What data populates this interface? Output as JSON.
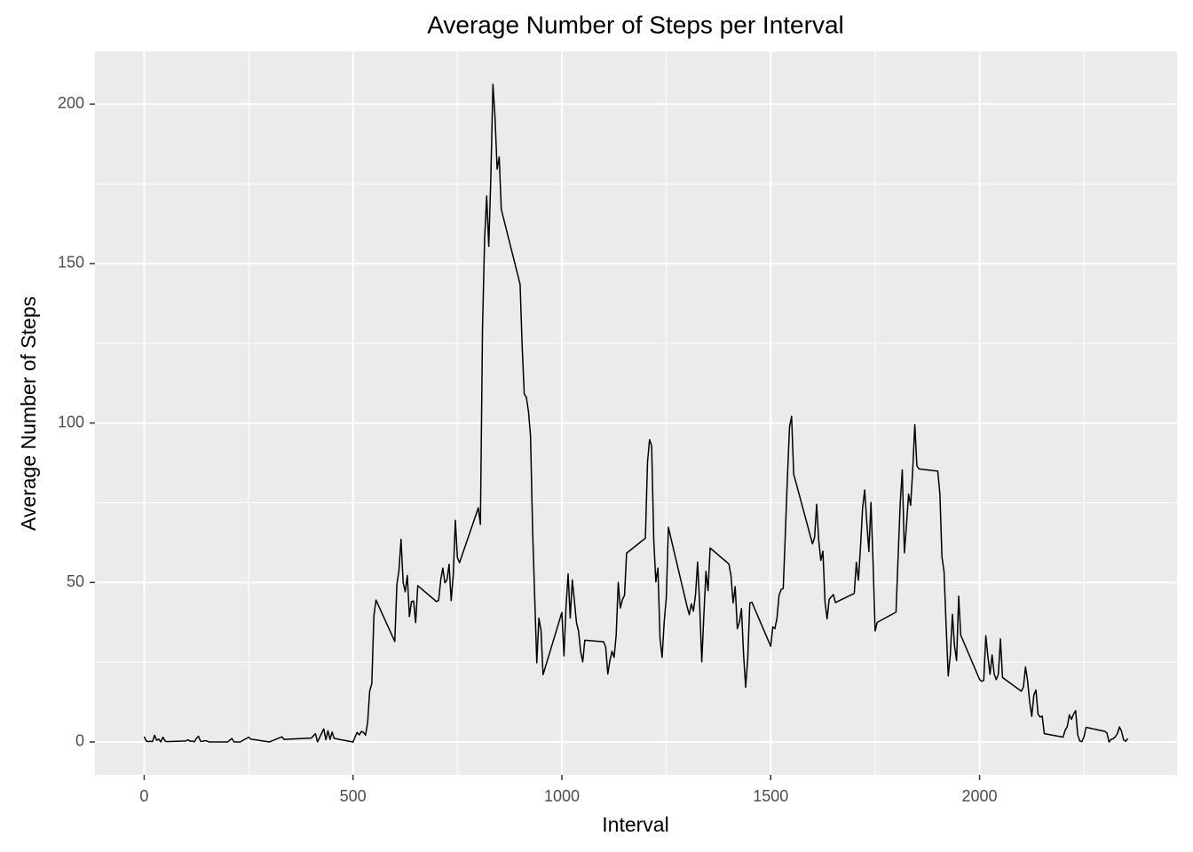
{
  "chart_data": {
    "type": "line",
    "title": "Average Number of Steps per Interval",
    "x_label": "Interval",
    "y_label": "Average Number of Steps",
    "xlim": [
      -117.75,
      2472.75
    ],
    "ylim": [
      -10.3,
      216.5
    ],
    "xticks": [
      0,
      500,
      1000,
      1500,
      2000
    ],
    "yticks": [
      0,
      50,
      100,
      150,
      200
    ],
    "x_minor_ticks": [
      250,
      750,
      1250,
      1750,
      2250
    ],
    "y_minor_ticks": [
      25,
      75,
      125,
      175
    ],
    "grid": true,
    "background": "#ebebeb",
    "grid_color": "#ffffff",
    "series": [
      {
        "name": "steps",
        "color": "#000000",
        "x": [
          0,
          5,
          10,
          15,
          20,
          25,
          30,
          35,
          40,
          45,
          50,
          55,
          100,
          105,
          110,
          115,
          120,
          125,
          130,
          135,
          140,
          145,
          150,
          155,
          200,
          210,
          215,
          230,
          250,
          255,
          300,
          330,
          335,
          400,
          410,
          415,
          430,
          435,
          440,
          445,
          450,
          455,
          500,
          505,
          510,
          515,
          520,
          525,
          530,
          535,
          540,
          545,
          550,
          555,
          600,
          605,
          610,
          615,
          620,
          625,
          630,
          635,
          640,
          645,
          650,
          655,
          700,
          705,
          710,
          715,
          720,
          725,
          730,
          735,
          740,
          745,
          750,
          755,
          800,
          805,
          810,
          815,
          820,
          825,
          830,
          835,
          840,
          845,
          850,
          855,
          900,
          905,
          910,
          915,
          920,
          925,
          930,
          935,
          940,
          945,
          950,
          955,
          1000,
          1005,
          1010,
          1015,
          1020,
          1025,
          1030,
          1035,
          1040,
          1045,
          1050,
          1055,
          1100,
          1105,
          1110,
          1115,
          1120,
          1125,
          1130,
          1135,
          1140,
          1145,
          1150,
          1155,
          1200,
          1205,
          1210,
          1215,
          1220,
          1225,
          1230,
          1235,
          1240,
          1245,
          1250,
          1255,
          1300,
          1305,
          1310,
          1315,
          1320,
          1325,
          1330,
          1335,
          1340,
          1345,
          1350,
          1355,
          1400,
          1405,
          1410,
          1415,
          1420,
          1425,
          1430,
          1435,
          1440,
          1445,
          1450,
          1455,
          1500,
          1505,
          1510,
          1515,
          1520,
          1525,
          1530,
          1535,
          1540,
          1545,
          1550,
          1555,
          1600,
          1605,
          1610,
          1615,
          1620,
          1625,
          1630,
          1635,
          1640,
          1645,
          1650,
          1655,
          1700,
          1705,
          1710,
          1715,
          1720,
          1725,
          1730,
          1735,
          1740,
          1745,
          1750,
          1755,
          1800,
          1805,
          1810,
          1815,
          1820,
          1825,
          1830,
          1835,
          1840,
          1845,
          1850,
          1855,
          1900,
          1905,
          1910,
          1915,
          1920,
          1925,
          1930,
          1935,
          1940,
          1945,
          1950,
          1955,
          2000,
          2005,
          2010,
          2015,
          2020,
          2025,
          2030,
          2035,
          2040,
          2045,
          2050,
          2055,
          2100,
          2105,
          2110,
          2115,
          2120,
          2125,
          2130,
          2135,
          2140,
          2145,
          2150,
          2155,
          2200,
          2205,
          2210,
          2215,
          2220,
          2225,
          2230,
          2235,
          2240,
          2245,
          2250,
          2255,
          2300,
          2305,
          2310,
          2315,
          2320,
          2325,
          2330,
          2335,
          2340,
          2345,
          2350,
          2355
        ],
        "values": [
          1.7,
          0.3,
          0.1,
          0.2,
          0.1,
          2.1,
          0.5,
          0.9,
          0,
          1.5,
          0.3,
          0.1,
          0.3,
          0.7,
          0.2,
          0.3,
          0,
          1.1,
          1.8,
          0.2,
          0.2,
          0.4,
          0.3,
          0,
          0,
          1.1,
          0,
          0,
          1.5,
          0.9,
          0,
          1.6,
          0.8,
          1.2,
          2.6,
          0,
          4.1,
          0.7,
          3.5,
          0.8,
          3.1,
          1.1,
          0,
          1.6,
          3.0,
          2.2,
          3.3,
          3.0,
          2.1,
          6.1,
          16.0,
          18.3,
          39.5,
          44.5,
          31.5,
          49.3,
          53.8,
          63.5,
          50.0,
          47.1,
          52.2,
          39.3,
          44.0,
          44.2,
          37.4,
          49.0,
          44.0,
          44.4,
          50.8,
          54.5,
          49.9,
          50.8,
          55.7,
          44.3,
          52.3,
          69.5,
          57.8,
          56.2,
          73.4,
          68.2,
          129.4,
          157.5,
          171.2,
          155.4,
          177.3,
          206.2,
          195.9,
          179.6,
          183.4,
          167.0,
          143.5,
          124.0,
          109.1,
          108.1,
          103.7,
          96.0,
          66.2,
          45.2,
          24.8,
          38.8,
          35.0,
          21.1,
          40.6,
          27.0,
          42.4,
          52.7,
          38.9,
          50.8,
          44.3,
          37.4,
          34.7,
          28.3,
          25.1,
          31.9,
          31.4,
          29.7,
          21.3,
          25.5,
          28.4,
          26.5,
          33.4,
          50.0,
          42.0,
          44.6,
          46.0,
          59.2,
          63.9,
          87.7,
          94.8,
          92.8,
          63.4,
          50.2,
          54.5,
          32.4,
          26.5,
          37.7,
          45.1,
          67.3,
          42.3,
          39.9,
          43.3,
          41.0,
          46.2,
          56.4,
          42.8,
          25.1,
          40.0,
          53.5,
          47.4,
          60.8,
          55.8,
          52.0,
          43.6,
          48.7,
          35.5,
          37.5,
          41.8,
          27.5,
          17.1,
          26.1,
          43.6,
          43.8,
          30.0,
          36.1,
          35.5,
          38.8,
          46.0,
          47.8,
          48.1,
          65.3,
          82.9,
          98.7,
          102.1,
          84.0,
          62.1,
          64.1,
          74.5,
          63.2,
          56.9,
          59.8,
          43.9,
          38.6,
          44.7,
          45.5,
          46.2,
          43.7,
          46.6,
          56.3,
          50.7,
          61.2,
          73.4,
          79.0,
          68.9,
          59.7,
          75.1,
          56.5,
          34.8,
          37.5,
          40.7,
          58.0,
          74.7,
          85.3,
          59.3,
          67.8,
          77.7,
          74.2,
          85.3,
          99.5,
          86.6,
          85.6,
          84.9,
          77.8,
          58.0,
          53.4,
          36.3,
          20.7,
          27.4,
          40.0,
          30.2,
          25.5,
          45.7,
          33.5,
          19.6,
          19.0,
          19.3,
          33.3,
          26.8,
          21.2,
          27.3,
          21.3,
          19.5,
          21.3,
          32.3,
          20.2,
          15.9,
          17.2,
          23.5,
          19.2,
          12.5,
          8.0,
          14.7,
          16.3,
          8.7,
          7.8,
          8.1,
          2.6,
          1.5,
          3.7,
          4.8,
          8.5,
          7.1,
          8.7,
          9.8,
          2.2,
          0.3,
          0.1,
          1.6,
          4.6,
          3.3,
          2.8,
          0,
          0.8,
          1.0,
          1.6,
          2.6,
          4.7,
          3.3,
          0.6,
          0.2,
          1.1
        ]
      }
    ]
  }
}
